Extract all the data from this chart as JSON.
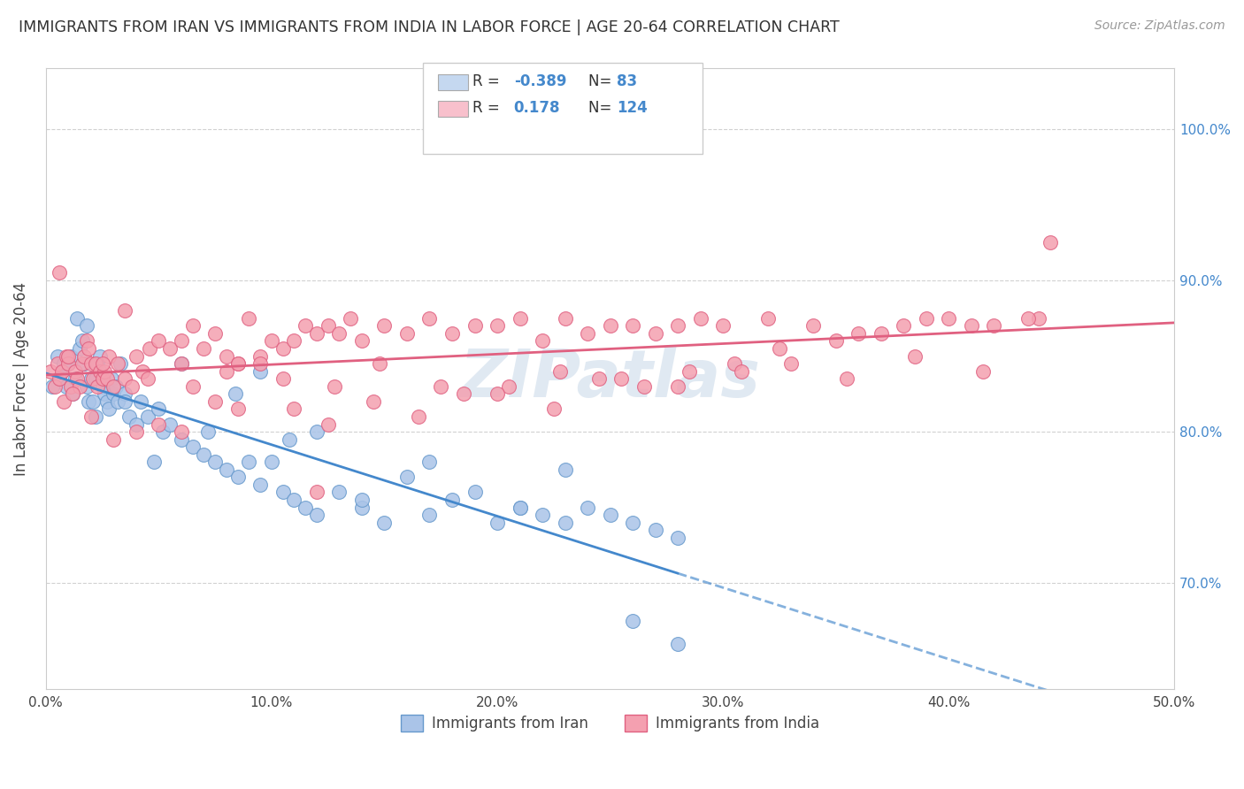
{
  "title": "IMMIGRANTS FROM IRAN VS IMMIGRANTS FROM INDIA IN LABOR FORCE | AGE 20-64 CORRELATION CHART",
  "source": "Source: ZipAtlas.com",
  "xlabel_vals": [
    0.0,
    10.0,
    20.0,
    30.0,
    40.0,
    50.0
  ],
  "ylabel_vals": [
    70.0,
    80.0,
    90.0,
    100.0
  ],
  "ylabel_label": "In Labor Force | Age 20-64",
  "xlim": [
    0.0,
    50.0
  ],
  "ylim": [
    63.0,
    104.0
  ],
  "iran_color": "#aac4e8",
  "iran_edge": "#6699cc",
  "india_color": "#f4a0b0",
  "india_edge": "#e06080",
  "iran_line_color": "#4488cc",
  "india_line_color": "#e06080",
  "legend_box_iran": "#c5d8f0",
  "legend_box_india": "#f8c0cc",
  "watermark_color": "#c8d8e8",
  "background_color": "#ffffff",
  "iran_scatter_x": [
    0.3,
    0.5,
    0.6,
    0.7,
    0.8,
    0.9,
    1.0,
    1.1,
    1.2,
    1.3,
    1.5,
    1.6,
    1.7,
    1.8,
    1.9,
    2.0,
    2.1,
    2.2,
    2.3,
    2.4,
    2.5,
    2.6,
    2.7,
    2.8,
    2.9,
    3.0,
    3.1,
    3.2,
    3.3,
    3.5,
    3.7,
    4.0,
    4.2,
    4.5,
    5.0,
    5.2,
    5.5,
    6.0,
    6.5,
    7.0,
    7.5,
    8.0,
    8.5,
    9.0,
    9.5,
    10.0,
    10.5,
    11.0,
    11.5,
    12.0,
    13.0,
    14.0,
    15.0,
    16.0,
    17.0,
    18.0,
    19.0,
    20.0,
    21.0,
    22.0,
    23.0,
    24.0,
    25.0,
    26.0,
    27.0,
    28.0,
    1.4,
    1.8,
    2.2,
    3.5,
    4.8,
    6.0,
    7.2,
    8.4,
    9.5,
    10.8,
    12.0,
    14.0,
    17.0,
    21.0,
    23.0,
    26.0,
    28.0
  ],
  "iran_scatter_y": [
    83.0,
    85.0,
    83.5,
    84.0,
    84.5,
    83.0,
    84.5,
    85.0,
    82.5,
    83.5,
    85.5,
    86.0,
    84.5,
    83.0,
    82.0,
    83.5,
    82.0,
    83.5,
    84.5,
    85.0,
    83.0,
    82.5,
    82.0,
    81.5,
    83.5,
    82.5,
    83.0,
    82.0,
    84.5,
    82.5,
    81.0,
    80.5,
    82.0,
    81.0,
    81.5,
    80.0,
    80.5,
    79.5,
    79.0,
    78.5,
    78.0,
    77.5,
    77.0,
    78.0,
    76.5,
    78.0,
    76.0,
    75.5,
    75.0,
    74.5,
    76.0,
    75.0,
    74.0,
    77.0,
    74.5,
    75.5,
    76.0,
    74.0,
    75.0,
    74.5,
    74.0,
    75.0,
    74.5,
    74.0,
    73.5,
    73.0,
    87.5,
    87.0,
    81.0,
    82.0,
    78.0,
    84.5,
    80.0,
    82.5,
    84.0,
    79.5,
    80.0,
    75.5,
    78.0,
    75.0,
    77.5,
    67.5,
    66.0
  ],
  "india_scatter_x": [
    0.2,
    0.4,
    0.5,
    0.6,
    0.7,
    0.9,
    1.0,
    1.1,
    1.3,
    1.4,
    1.5,
    1.6,
    1.7,
    1.8,
    1.9,
    2.0,
    2.1,
    2.2,
    2.3,
    2.4,
    2.5,
    2.6,
    2.7,
    2.8,
    3.0,
    3.2,
    3.5,
    3.8,
    4.0,
    4.3,
    4.6,
    5.0,
    5.5,
    6.0,
    6.5,
    7.0,
    7.5,
    8.0,
    8.5,
    9.0,
    9.5,
    10.0,
    10.5,
    11.0,
    11.5,
    12.0,
    12.5,
    13.0,
    13.5,
    14.0,
    15.0,
    16.0,
    17.0,
    18.0,
    19.0,
    20.0,
    21.0,
    22.0,
    23.0,
    24.0,
    25.0,
    26.0,
    27.0,
    28.0,
    29.0,
    30.0,
    32.0,
    34.0,
    36.0,
    38.0,
    40.0,
    42.0,
    44.0,
    0.8,
    1.2,
    2.0,
    3.0,
    4.0,
    5.0,
    6.0,
    7.5,
    8.5,
    9.5,
    11.0,
    12.5,
    14.5,
    16.5,
    18.5,
    20.5,
    22.5,
    24.5,
    26.5,
    28.5,
    30.5,
    32.5,
    35.0,
    37.0,
    39.0,
    41.0,
    43.5,
    1.0,
    2.5,
    4.5,
    6.5,
    8.0,
    10.5,
    12.8,
    14.8,
    17.5,
    20.0,
    22.8,
    25.5,
    28.0,
    30.8,
    33.0,
    35.5,
    38.5,
    41.5,
    44.5,
    0.6,
    3.5,
    6.0,
    8.5,
    12.0
  ],
  "india_scatter_y": [
    84.0,
    83.0,
    84.5,
    83.5,
    84.0,
    85.0,
    84.5,
    83.0,
    84.0,
    83.5,
    83.0,
    84.5,
    85.0,
    86.0,
    85.5,
    84.5,
    83.5,
    84.5,
    83.0,
    84.0,
    83.5,
    84.0,
    83.5,
    85.0,
    83.0,
    84.5,
    83.5,
    83.0,
    85.0,
    84.0,
    85.5,
    86.0,
    85.5,
    84.5,
    87.0,
    85.5,
    86.5,
    85.0,
    84.5,
    87.5,
    85.0,
    86.0,
    85.5,
    86.0,
    87.0,
    86.5,
    87.0,
    86.5,
    87.5,
    86.0,
    87.0,
    86.5,
    87.5,
    86.5,
    87.0,
    87.0,
    87.5,
    86.0,
    87.5,
    86.5,
    87.0,
    87.0,
    86.5,
    87.0,
    87.5,
    87.0,
    87.5,
    87.0,
    86.5,
    87.0,
    87.5,
    87.0,
    87.5,
    82.0,
    82.5,
    81.0,
    79.5,
    80.0,
    80.5,
    80.0,
    82.0,
    81.5,
    84.5,
    81.5,
    80.5,
    82.0,
    81.0,
    82.5,
    83.0,
    81.5,
    83.5,
    83.0,
    84.0,
    84.5,
    85.5,
    86.0,
    86.5,
    87.5,
    87.0,
    87.5,
    85.0,
    84.5,
    83.5,
    83.0,
    84.0,
    83.5,
    83.0,
    84.5,
    83.0,
    82.5,
    84.0,
    83.5,
    83.0,
    84.0,
    84.5,
    83.5,
    85.0,
    84.0,
    92.5,
    90.5,
    88.0,
    86.0,
    84.5,
    76.0
  ]
}
